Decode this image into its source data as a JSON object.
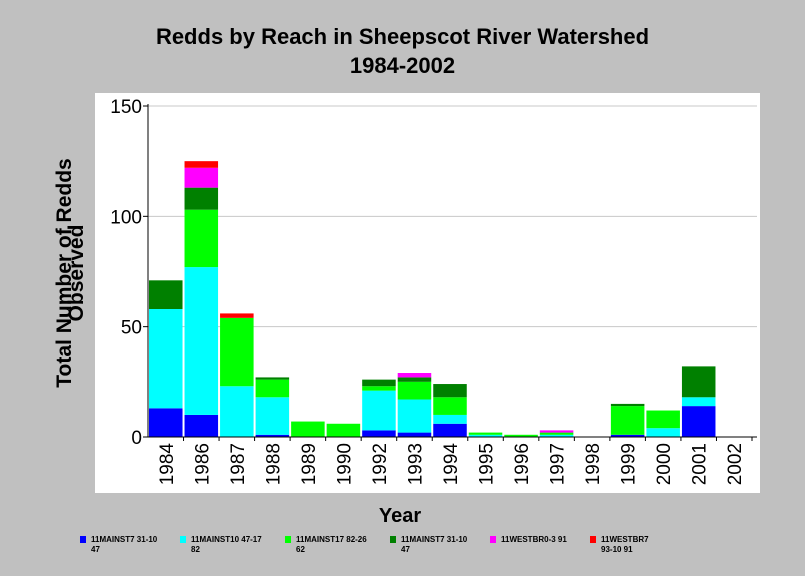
{
  "chart_data": {
    "type": "bar",
    "stacked": true,
    "title": "Redds by Reach in Sheepscot River Watershed",
    "subtitle": "1984-2002",
    "xlabel": "Year",
    "ylabel_line1": "Total Number of Redds",
    "ylabel_line2": "Observed",
    "ylim": [
      0,
      150
    ],
    "yticks": [
      "0",
      "50",
      "100",
      "150"
    ],
    "grid": true,
    "legend_position": "bottom",
    "categories": [
      "1984",
      "1986",
      "1987",
      "1988",
      "1989",
      "1990",
      "1992",
      "1993",
      "1994",
      "1995",
      "1996",
      "1997",
      "1998",
      "1999",
      "2000",
      "2001",
      "2002"
    ],
    "series": [
      {
        "name": "11MAINST7 31-10 47",
        "color": "#0000ff",
        "values": [
          13,
          10,
          0,
          1,
          0,
          0,
          3,
          2,
          6,
          0,
          0,
          0,
          0,
          1,
          0,
          14,
          0
        ]
      },
      {
        "name": "11MAINST10 47-17 82",
        "color": "#00ffff",
        "values": [
          45,
          67,
          23,
          17,
          0,
          0,
          18,
          15,
          4,
          1,
          0,
          1,
          0,
          0,
          4,
          4,
          0
        ]
      },
      {
        "name": "11MAINST17 82-26 62",
        "color": "#00ff00",
        "values": [
          0,
          26,
          31,
          8,
          7,
          6,
          2,
          8,
          8,
          1,
          1,
          1,
          0,
          13,
          8,
          0,
          0
        ]
      },
      {
        "name": "11MAINST7 31-10 47",
        "color": "#008000",
        "values": [
          13,
          10,
          0,
          1,
          0,
          0,
          3,
          2,
          6,
          0,
          0,
          0,
          0,
          1,
          0,
          14,
          0
        ]
      },
      {
        "name": "11WESTBR0-3 91",
        "color": "#ff00ff",
        "values": [
          0,
          9,
          0,
          0,
          0,
          0,
          0,
          2,
          0,
          0,
          0,
          1,
          0,
          0,
          0,
          0,
          0
        ]
      },
      {
        "name": "11WESTBR7 93-10 91",
        "color": "#ff0000",
        "values": [
          0,
          3,
          2,
          0,
          0,
          0,
          0,
          0,
          0,
          0,
          0,
          0,
          0,
          0,
          0,
          0,
          0
        ]
      }
    ]
  },
  "legend": [
    {
      "line1": "11MAINST7 31-10",
      "line2": "47",
      "color": "#0000ff"
    },
    {
      "line1": "11MAINST10 47-17",
      "line2": "82",
      "color": "#00ffff"
    },
    {
      "line1": "11MAINST17 82-26",
      "line2": "62",
      "color": "#00ff00"
    },
    {
      "line1": "11MAINST7 31-10",
      "line2": "47",
      "color": "#008000"
    },
    {
      "line1": "11WESTBR0-3 91",
      "line2": "",
      "color": "#ff00ff"
    },
    {
      "line1": "11WESTBR7",
      "line2": "93-10 91",
      "color": "#ff0000"
    }
  ]
}
